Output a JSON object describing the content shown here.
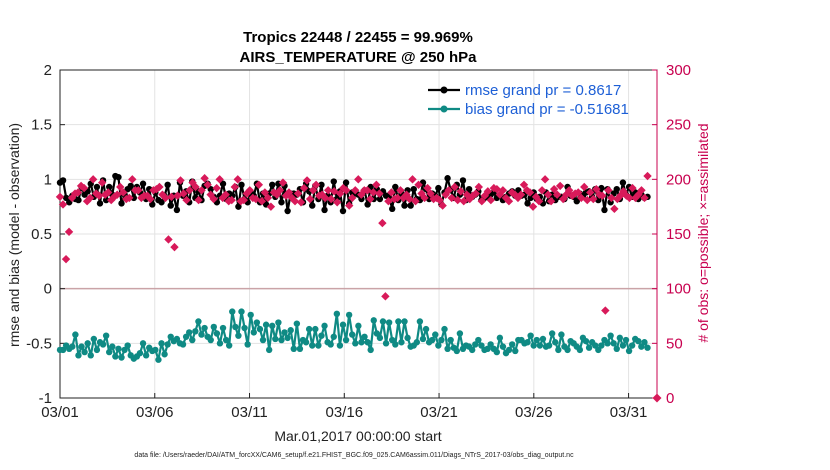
{
  "chart_data": {
    "type": "line",
    "title": "Tropics 22448 / 22455 = 99.969%",
    "subtitle": "AIRS_TEMPERATURE @ 250 hPa",
    "xlabel": "Mar.01,2017 00:00:00 start",
    "ylabel": "rmse and bias (model - observation)",
    "ylabel_right": "# of obs: o=possible; ×=assimilated",
    "ylim": [
      -1,
      2
    ],
    "ylim_right": [
      0,
      300
    ],
    "xlim": [
      0,
      31.5
    ],
    "yticks": [
      "-1",
      "-0.5",
      "0",
      "0.5",
      "1",
      "1.5",
      "2"
    ],
    "yticks_right": [
      "0",
      "50",
      "100",
      "150",
      "200",
      "250",
      "300"
    ],
    "xticks": [
      "03/01",
      "03/06",
      "03/11",
      "03/16",
      "03/21",
      "03/26",
      "03/31"
    ],
    "xtick_positions": [
      0,
      5,
      10,
      15,
      20,
      25,
      30
    ],
    "footnote": "data file: /Users/raeder/DAI/ATM_forcXX/CAM6_setup/f.e21.FHIST_BGC.f09_025.CAM6assim.011/Diags_NTrS_2017-03/obs_diag_output.nc",
    "legend_position": "top-right",
    "series": [
      {
        "name": "rmse grand pr = 0.8617",
        "axis": "left",
        "color": "#000000",
        "values": [
          0.97,
          0.99,
          0.83,
          0.79,
          0.85,
          0.82,
          0.81,
          0.93,
          0.86,
          0.89,
          0.96,
          0.84,
          0.93,
          0.78,
          0.99,
          0.81,
          0.93,
          0.86,
          1.03,
          1.02,
          0.78,
          0.86,
          0.91,
          0.94,
          0.83,
          0.93,
          0.88,
          0.96,
          0.82,
          0.91,
          0.77,
          0.88,
          0.81,
          0.79,
          0.85,
          0.95,
          0.76,
          0.85,
          0.72,
          0.97,
          0.85,
          0.89,
          0.79,
          0.98,
          0.83,
          0.89,
          0.81,
          0.94,
          0.96,
          0.91,
          0.84,
          0.79,
          0.85,
          0.96,
          0.82,
          0.87,
          0.85,
          0.93,
          0.75,
          0.95,
          0.82,
          0.79,
          0.88,
          0.85,
          0.96,
          0.79,
          0.87,
          0.77,
          0.87,
          0.95,
          0.84,
          0.96,
          0.79,
          0.94,
          0.71,
          0.87,
          0.87,
          0.86,
          0.91,
          0.79,
          0.96,
          0.89,
          0.76,
          0.94,
          0.82,
          0.95,
          0.72,
          0.85,
          0.79,
          0.98,
          0.82,
          0.89,
          0.71,
          0.97,
          0.78,
          0.88,
          0.87,
          0.86,
          0.82,
          0.9,
          0.77,
          0.93,
          0.82,
          0.91,
          0.82,
          0.89,
          0.85,
          0.84,
          0.73,
          0.93,
          0.81,
          0.87,
          0.76,
          0.9,
          0.76,
          0.91,
          0.82,
          0.81,
          0.97,
          0.91,
          0.82,
          0.87,
          0.85,
          0.92,
          0.77,
          0.88,
          1.01,
          0.9,
          0.83,
          0.95,
          0.86,
          0.99,
          0.81,
          0.91,
          0.84,
          0.86,
          0.89,
          0.81,
          0.83,
          0.84,
          0.86,
          0.88,
          0.83,
          0.85,
          0.81,
          0.84,
          0.87,
          0.89,
          0.85,
          0.9,
          0.85,
          0.86,
          0.78,
          0.83,
          0.88,
          0.82,
          0.84,
          0.78,
          0.88,
          0.8,
          0.86,
          0.81,
          0.84,
          0.84,
          0.82,
          0.93,
          0.85,
          0.84,
          0.8,
          0.87,
          0.85,
          0.88,
          0.89,
          0.84,
          0.91,
          0.81,
          0.92,
          0.72,
          0.91,
          0.79,
          0.87,
          0.91,
          0.82,
          0.97,
          0.86,
          0.93,
          0.84,
          0.88,
          0.82,
          0.86,
          0.83,
          0.84
        ]
      },
      {
        "name": "bias grand pr = -0.51681",
        "axis": "left",
        "color": "#0f8a84",
        "values": [
          -0.56,
          -0.56,
          -0.52,
          -0.55,
          -0.53,
          -0.42,
          -0.61,
          -0.53,
          -0.58,
          -0.5,
          -0.61,
          -0.46,
          -0.56,
          -0.49,
          -0.51,
          -0.43,
          -0.58,
          -0.53,
          -0.62,
          -0.55,
          -0.63,
          -0.56,
          -0.52,
          -0.61,
          -0.64,
          -0.62,
          -0.59,
          -0.5,
          -0.61,
          -0.54,
          -0.57,
          -0.56,
          -0.65,
          -0.5,
          -0.6,
          -0.51,
          -0.44,
          -0.48,
          -0.46,
          -0.5,
          -0.51,
          -0.44,
          -0.4,
          -0.47,
          -0.39,
          -0.3,
          -0.42,
          -0.36,
          -0.44,
          -0.47,
          -0.35,
          -0.41,
          -0.5,
          -0.36,
          -0.47,
          -0.52,
          -0.21,
          -0.35,
          -0.43,
          -0.21,
          -0.36,
          -0.51,
          -0.24,
          -0.4,
          -0.31,
          -0.37,
          -0.47,
          -0.33,
          -0.56,
          -0.34,
          -0.46,
          -0.31,
          -0.47,
          -0.4,
          -0.45,
          -0.38,
          -0.55,
          -0.32,
          -0.55,
          -0.47,
          -0.49,
          -0.37,
          -0.52,
          -0.37,
          -0.52,
          -0.43,
          -0.34,
          -0.49,
          -0.51,
          -0.44,
          -0.23,
          -0.52,
          -0.33,
          -0.47,
          -0.24,
          -0.42,
          -0.5,
          -0.34,
          -0.49,
          -0.44,
          -0.49,
          -0.56,
          -0.29,
          -0.41,
          -0.45,
          -0.3,
          -0.5,
          -0.31,
          -0.47,
          -0.51,
          -0.3,
          -0.49,
          -0.3,
          -0.45,
          -0.53,
          -0.52,
          -0.49,
          -0.3,
          -0.46,
          -0.37,
          -0.49,
          -0.47,
          -0.42,
          -0.52,
          -0.47,
          -0.37,
          -0.55,
          -0.47,
          -0.54,
          -0.57,
          -0.41,
          -0.55,
          -0.52,
          -0.53,
          -0.56,
          -0.51,
          -0.47,
          -0.52,
          -0.56,
          -0.55,
          -0.51,
          -0.55,
          -0.58,
          -0.45,
          -0.53,
          -0.59,
          -0.56,
          -0.51,
          -0.57,
          -0.47,
          -0.47,
          -0.5,
          -0.49,
          -0.43,
          -0.52,
          -0.47,
          -0.52,
          -0.46,
          -0.53,
          -0.52,
          -0.41,
          -0.49,
          -0.56,
          -0.42,
          -0.53,
          -0.56,
          -0.48,
          -0.5,
          -0.53,
          -0.56,
          -0.45,
          -0.48,
          -0.54,
          -0.49,
          -0.52,
          -0.56,
          -0.52,
          -0.47,
          -0.5,
          -0.43,
          -0.5,
          -0.55,
          -0.45,
          -0.52,
          -0.47,
          -0.57,
          -0.52,
          -0.46,
          -0.48,
          -0.53,
          -0.49,
          -0.54
        ]
      },
      {
        "name": "# of obs assimilated / possible",
        "axis": "right",
        "color": "#d81a5a",
        "marker": "diamond",
        "values": [
          184,
          177,
          127,
          152,
          183,
          187,
          188,
          194,
          192,
          180,
          183,
          200,
          187,
          185,
          197,
          186,
          188,
          181,
          184,
          186,
          193,
          188,
          182,
          183,
          200,
          190,
          190,
          183,
          185,
          185,
          182,
          190,
          191,
          193,
          186,
          183,
          145,
          184,
          138,
          185,
          199,
          187,
          181,
          190,
          197,
          193,
          181,
          190,
          201,
          195,
          186,
          182,
          192,
          200,
          183,
          186,
          180,
          181,
          193,
          200,
          180,
          181,
          187,
          190,
          183,
          182,
          195,
          180,
          188,
          183,
          175,
          188,
          186,
          190,
          197,
          185,
          188,
          183,
          180,
          187,
          179,
          192,
          199,
          182,
          190,
          195,
          185,
          186,
          183,
          190,
          182,
          189,
          179,
          187,
          192,
          190,
          176,
          183,
          190,
          200,
          186,
          190,
          190,
          182,
          188,
          195,
          187,
          160,
          93,
          180,
          188,
          182,
          183,
          190,
          183,
          186,
          182,
          200,
          180,
          195,
          187,
          183,
          192,
          187,
          182,
          183,
          181,
          176,
          186,
          190,
          183,
          193,
          181,
          189,
          180,
          186,
          182,
          185,
          187,
          193,
          180,
          185,
          189,
          181,
          192,
          191,
          186,
          190,
          183,
          180,
          188,
          186,
          183,
          186,
          195,
          190,
          188,
          175,
          184,
          180,
          190,
          200,
          186,
          180,
          191,
          186,
          194,
          182,
          186,
          190,
          185,
          187,
          188,
          183,
          193,
          181,
          188,
          182,
          191,
          186,
          185,
          80,
          190,
          183,
          173,
          182,
          185,
          189,
          185,
          183,
          192,
          183,
          186,
          190,
          183,
          203
        ]
      }
    ],
    "hline": 0
  }
}
